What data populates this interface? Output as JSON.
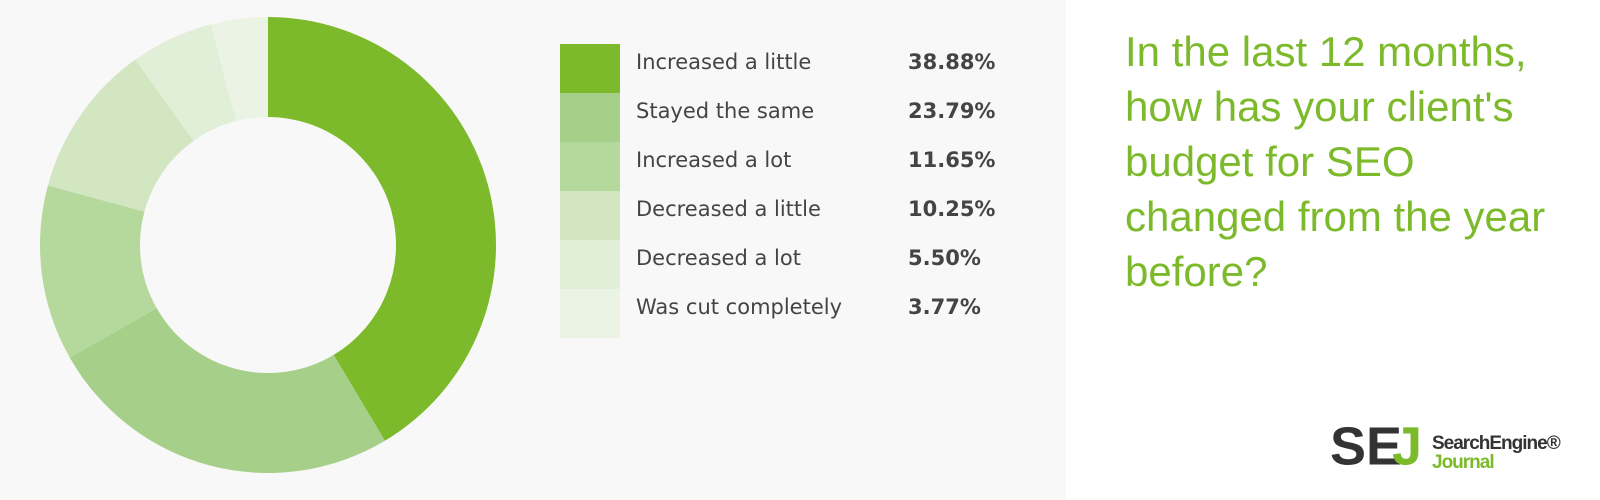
{
  "chart_data": {
    "type": "donut",
    "title": "In the last 12 months, how has your client's budget for SEO changed from the year before?",
    "categories": [
      "Increased a little",
      "Stayed the same",
      "Increased a lot",
      "Decreased a little",
      "Decreased a lot",
      "Was cut completely"
    ],
    "values": [
      38.88,
      23.79,
      11.65,
      10.25,
      5.5,
      3.77
    ],
    "value_labels": [
      "38.88%",
      "23.79%",
      "11.65%",
      "10.25%",
      "5.50%",
      "3.77%"
    ],
    "colors": [
      "#7cba2b",
      "#a6d08a",
      "#b5d99c",
      "#d2e6c2",
      "#e2efd8",
      "#ebf4e4"
    ]
  },
  "logo": {
    "mark_1": "SE",
    "mark_2": "J",
    "line_1": "SearchEngine®",
    "line_2": "Journal"
  }
}
